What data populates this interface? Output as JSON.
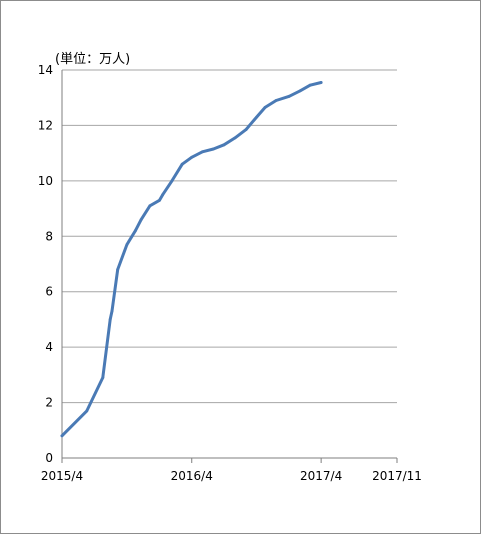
{
  "chart_data": {
    "type": "line",
    "unit_label": "(単位：万人)",
    "x_tick_labels": [
      "2015/4",
      "2016/4",
      "2017/4",
      "2017/11"
    ],
    "x_ticks": [
      "2015-04",
      "2016-04",
      "2017-04",
      "2017-11"
    ],
    "y_tick_labels": [
      "0",
      "2",
      "4",
      "6",
      "8",
      "10",
      "12",
      "14"
    ],
    "ylim": [
      0,
      14
    ],
    "grid": "horizontal",
    "legend": "none",
    "series": [
      {
        "color": "#4a7ab5",
        "points": [
          [
            "2015-04-01",
            0.8
          ],
          [
            "2015-06-10",
            1.7
          ],
          [
            "2015-07-25",
            2.9
          ],
          [
            "2015-08-15",
            5.0
          ],
          [
            "2015-08-20",
            5.3
          ],
          [
            "2015-09-05",
            6.8
          ],
          [
            "2015-10-01",
            7.7
          ],
          [
            "2015-10-25",
            8.2
          ],
          [
            "2015-11-10",
            8.6
          ],
          [
            "2015-12-05",
            9.1
          ],
          [
            "2016-01-01",
            9.3
          ],
          [
            "2016-01-10",
            9.5
          ],
          [
            "2016-02-05",
            10.0
          ],
          [
            "2016-03-05",
            10.6
          ],
          [
            "2016-04-01",
            10.85
          ],
          [
            "2016-05-01",
            11.05
          ],
          [
            "2016-06-01",
            11.15
          ],
          [
            "2016-07-01",
            11.3
          ],
          [
            "2016-08-01",
            11.55
          ],
          [
            "2016-09-01",
            11.85
          ],
          [
            "2016-10-01",
            12.3
          ],
          [
            "2016-10-25",
            12.65
          ],
          [
            "2016-11-25",
            12.9
          ],
          [
            "2017-01-01",
            13.05
          ],
          [
            "2017-02-01",
            13.25
          ],
          [
            "2017-03-01",
            13.45
          ],
          [
            "2017-04-01",
            13.55
          ]
        ]
      }
    ]
  }
}
